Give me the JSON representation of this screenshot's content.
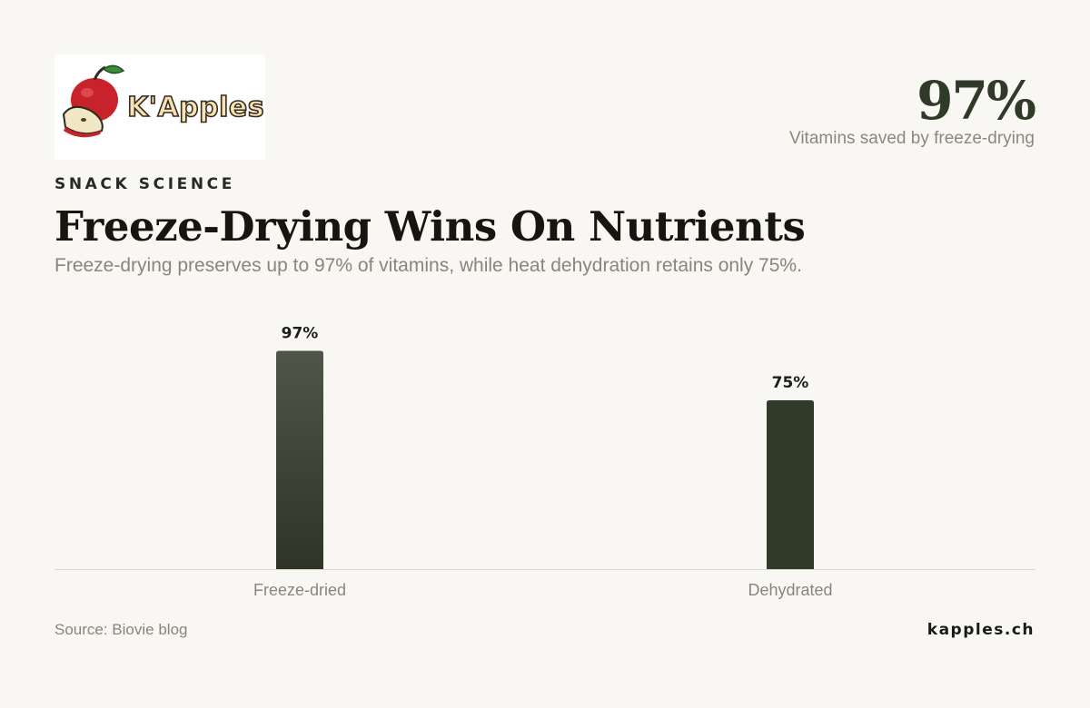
{
  "brand": {
    "logo_text": "K'Apples",
    "logo_icon": "apple-icon"
  },
  "highlight": {
    "value": "97%",
    "label": "Vitamins saved by freeze-drying"
  },
  "header": {
    "kicker": "SNACK SCIENCE",
    "title": "Freeze-Drying Wins On Nutrients",
    "subtitle": "Freeze-drying preserves up to 97% of vitamins, while heat dehydration retains only 75%."
  },
  "chart_data": {
    "type": "bar",
    "categories": [
      "Freeze-dried",
      "Dehydrated"
    ],
    "values": [
      97,
      75
    ],
    "value_labels": [
      "97%",
      "75%"
    ],
    "unit": "%",
    "ylim": [
      0,
      100
    ],
    "grid": false,
    "legend": "none",
    "colors": {
      "highlight_top": "#4f5649",
      "highlight_bottom": "#2e3527",
      "bar": "#2f3a28",
      "baseline": "#dcd9d2",
      "label": "#8a857b",
      "value_label": "#1e1e18"
    }
  },
  "footer": {
    "source": "Source: Biovie blog",
    "site": "kapples.ch"
  }
}
